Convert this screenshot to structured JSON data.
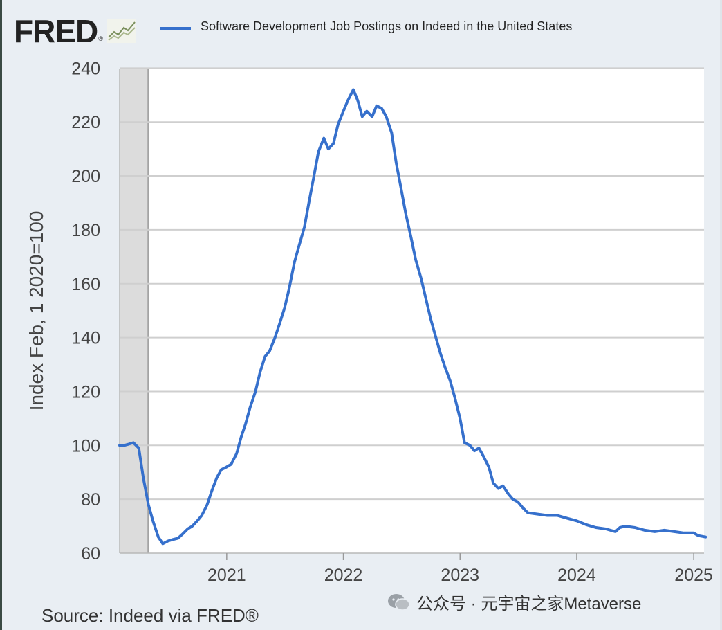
{
  "header": {
    "logo_text": "FRED",
    "logo_reg": "®",
    "legend_label": "Software Development Job Postings on Indeed in the United States"
  },
  "footer": {
    "source": "Source: Indeed via FRED®",
    "watermark": "公众号 · 元宇宙之家Metaverse"
  },
  "colors": {
    "series": "#3670cc",
    "recession_band": "#dcdcdc",
    "grid": "#cfcfcf",
    "plot_bg": "#ffffff",
    "frame_bg": "#e9eef3"
  },
  "chart_data": {
    "type": "line",
    "title": "",
    "xlabel": "",
    "ylabel": "Index Feb, 1 2020=100",
    "x_ticks": [
      "2021",
      "2022",
      "2023",
      "2024",
      "2025"
    ],
    "y_ticks": [
      "60",
      "80",
      "100",
      "120",
      "140",
      "160",
      "180",
      "200",
      "220",
      "240"
    ],
    "ylim": [
      60,
      240
    ],
    "xlim": [
      "2020-02-01",
      "2025-02-07"
    ],
    "grid": true,
    "legend": "top",
    "shaded_period": {
      "label": "recession",
      "start": "2020-02-01",
      "end": "2020-04-30"
    },
    "series": [
      {
        "name": "Software Development Job Postings on Indeed in the United States",
        "points": [
          [
            "2020-02-01",
            100
          ],
          [
            "2020-02-15",
            100
          ],
          [
            "2020-03-01",
            100.5
          ],
          [
            "2020-03-15",
            101
          ],
          [
            "2020-04-01",
            99
          ],
          [
            "2020-04-15",
            88
          ],
          [
            "2020-05-01",
            78
          ],
          [
            "2020-05-15",
            72
          ],
          [
            "2020-06-01",
            66
          ],
          [
            "2020-06-15",
            63.5
          ],
          [
            "2020-07-01",
            64.5
          ],
          [
            "2020-07-15",
            65
          ],
          [
            "2020-08-01",
            65.5
          ],
          [
            "2020-08-15",
            67
          ],
          [
            "2020-09-01",
            69
          ],
          [
            "2020-09-15",
            70
          ],
          [
            "2020-10-01",
            72
          ],
          [
            "2020-10-15",
            74
          ],
          [
            "2020-11-01",
            78
          ],
          [
            "2020-11-15",
            83
          ],
          [
            "2020-12-01",
            88
          ],
          [
            "2020-12-15",
            91
          ],
          [
            "2021-01-01",
            92
          ],
          [
            "2021-01-15",
            93
          ],
          [
            "2021-02-01",
            97
          ],
          [
            "2021-02-15",
            103
          ],
          [
            "2021-03-01",
            108
          ],
          [
            "2021-03-15",
            114
          ],
          [
            "2021-04-01",
            120
          ],
          [
            "2021-04-15",
            127
          ],
          [
            "2021-05-01",
            133
          ],
          [
            "2021-05-15",
            135
          ],
          [
            "2021-06-01",
            140
          ],
          [
            "2021-06-15",
            145
          ],
          [
            "2021-07-01",
            151
          ],
          [
            "2021-07-15",
            158
          ],
          [
            "2021-08-01",
            168
          ],
          [
            "2021-08-15",
            174
          ],
          [
            "2021-09-01",
            181
          ],
          [
            "2021-09-15",
            190
          ],
          [
            "2021-10-01",
            200
          ],
          [
            "2021-10-15",
            209
          ],
          [
            "2021-11-01",
            214
          ],
          [
            "2021-11-15",
            210
          ],
          [
            "2021-12-01",
            212
          ],
          [
            "2021-12-15",
            219
          ],
          [
            "2022-01-01",
            224
          ],
          [
            "2022-01-15",
            228
          ],
          [
            "2022-02-01",
            232
          ],
          [
            "2022-02-15",
            228
          ],
          [
            "2022-03-01",
            222
          ],
          [
            "2022-03-15",
            224
          ],
          [
            "2022-04-01",
            222
          ],
          [
            "2022-04-15",
            226
          ],
          [
            "2022-05-01",
            225
          ],
          [
            "2022-05-15",
            222
          ],
          [
            "2022-06-01",
            216
          ],
          [
            "2022-06-15",
            205
          ],
          [
            "2022-07-01",
            195
          ],
          [
            "2022-07-15",
            186
          ],
          [
            "2022-08-01",
            177
          ],
          [
            "2022-08-15",
            169
          ],
          [
            "2022-09-01",
            162
          ],
          [
            "2022-09-15",
            155
          ],
          [
            "2022-10-01",
            147
          ],
          [
            "2022-10-15",
            141
          ],
          [
            "2022-11-01",
            134
          ],
          [
            "2022-11-15",
            129
          ],
          [
            "2022-12-01",
            124
          ],
          [
            "2022-12-15",
            118
          ],
          [
            "2023-01-01",
            110
          ],
          [
            "2023-01-15",
            101
          ],
          [
            "2023-02-01",
            100
          ],
          [
            "2023-02-15",
            98
          ],
          [
            "2023-03-01",
            99
          ],
          [
            "2023-03-15",
            96
          ],
          [
            "2023-04-01",
            92
          ],
          [
            "2023-04-15",
            86
          ],
          [
            "2023-05-01",
            84
          ],
          [
            "2023-05-15",
            85
          ],
          [
            "2023-06-01",
            82
          ],
          [
            "2023-06-15",
            80
          ],
          [
            "2023-07-01",
            79
          ],
          [
            "2023-07-15",
            77
          ],
          [
            "2023-08-01",
            75
          ],
          [
            "2023-09-01",
            74.5
          ],
          [
            "2023-10-01",
            74
          ],
          [
            "2023-11-01",
            74
          ],
          [
            "2023-12-01",
            73
          ],
          [
            "2024-01-01",
            72
          ],
          [
            "2024-02-01",
            70.5
          ],
          [
            "2024-03-01",
            69.5
          ],
          [
            "2024-04-01",
            69
          ],
          [
            "2024-05-01",
            68
          ],
          [
            "2024-05-15",
            69.5
          ],
          [
            "2024-06-01",
            70
          ],
          [
            "2024-07-01",
            69.5
          ],
          [
            "2024-08-01",
            68.5
          ],
          [
            "2024-09-01",
            68
          ],
          [
            "2024-10-01",
            68.5
          ],
          [
            "2024-11-01",
            68
          ],
          [
            "2024-12-01",
            67.5
          ],
          [
            "2025-01-01",
            67.5
          ],
          [
            "2025-01-15",
            66.5
          ],
          [
            "2025-02-07",
            66
          ]
        ]
      }
    ]
  }
}
